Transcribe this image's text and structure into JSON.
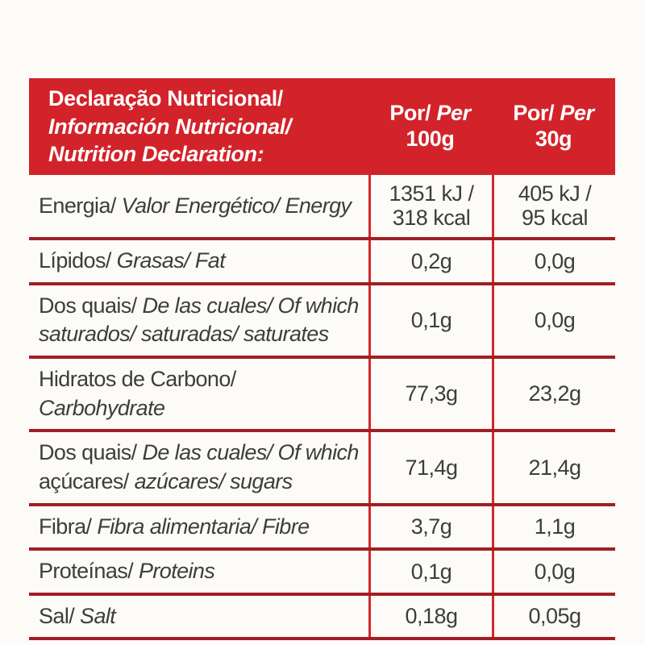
{
  "colors": {
    "page_background": "#fcfbf8",
    "header_background": "#d2232a",
    "header_text": "#ffffff",
    "row_divider": "#a11e24",
    "column_divider": "#d5262b",
    "body_text": "#3d3d3d"
  },
  "header": {
    "title_lines": [
      "Declaração Nutricional/",
      "Información Nutricional/",
      "Nutrition Declaration:"
    ],
    "columns": [
      {
        "por": "Por/",
        "per": "Per",
        "amount": "100g"
      },
      {
        "por": "Por/",
        "per": "Per",
        "amount": "30g"
      }
    ]
  },
  "rows": [
    {
      "name": "energy",
      "label_lines": [
        [
          {
            "text": "Energia/ ",
            "italic": false
          },
          {
            "text": "Valor Energético/ Energy",
            "italic": true
          }
        ]
      ],
      "per_100g": [
        "1351 kJ /",
        "318 kcal"
      ],
      "per_30g": [
        "405 kJ /",
        "95 kcal"
      ]
    },
    {
      "name": "fat",
      "label_lines": [
        [
          {
            "text": "Lípidos/ ",
            "italic": false
          },
          {
            "text": "Grasas/ Fat",
            "italic": true
          }
        ]
      ],
      "per_100g": [
        "0,2g"
      ],
      "per_30g": [
        "0,0g"
      ]
    },
    {
      "name": "saturates",
      "label_lines": [
        [
          {
            "text": "Dos quais/ ",
            "italic": false
          },
          {
            "text": "De las cuales/ Of which",
            "italic": true
          }
        ],
        [
          {
            "text": "saturados/ saturadas/ saturates",
            "italic": true
          }
        ]
      ],
      "per_100g": [
        "0,1g"
      ],
      "per_30g": [
        "0,0g"
      ]
    },
    {
      "name": "carbohydrate",
      "label_lines": [
        [
          {
            "text": "Hidratos de Carbono/ ",
            "italic": false
          },
          {
            "text": "Carbohydrate",
            "italic": true
          }
        ]
      ],
      "per_100g": [
        "77,3g"
      ],
      "per_30g": [
        "23,2g"
      ]
    },
    {
      "name": "sugars",
      "label_lines": [
        [
          {
            "text": "Dos quais/ ",
            "italic": false
          },
          {
            "text": "De las cuales/ Of which",
            "italic": true
          }
        ],
        [
          {
            "text": "açúcares/ ",
            "italic": false
          },
          {
            "text": "azúcares/ sugars",
            "italic": true
          }
        ]
      ],
      "per_100g": [
        "71,4g"
      ],
      "per_30g": [
        "21,4g"
      ]
    },
    {
      "name": "fibre",
      "label_lines": [
        [
          {
            "text": "Fibra/ ",
            "italic": false
          },
          {
            "text": "Fibra alimentaria/ Fibre",
            "italic": true
          }
        ]
      ],
      "per_100g": [
        "3,7g"
      ],
      "per_30g": [
        "1,1g"
      ]
    },
    {
      "name": "protein",
      "label_lines": [
        [
          {
            "text": "Proteínas/ ",
            "italic": false
          },
          {
            "text": "Proteins",
            "italic": true
          }
        ]
      ],
      "per_100g": [
        "0,1g"
      ],
      "per_30g": [
        "0,0g"
      ]
    },
    {
      "name": "salt",
      "label_lines": [
        [
          {
            "text": "Sal/ ",
            "italic": false
          },
          {
            "text": "Salt",
            "italic": true
          }
        ]
      ],
      "per_100g": [
        "0,18g"
      ],
      "per_30g": [
        "0,05g"
      ]
    }
  ]
}
